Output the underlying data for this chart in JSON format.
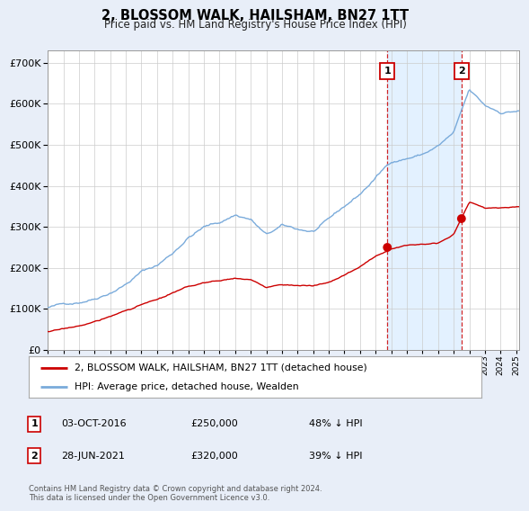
{
  "title": "2, BLOSSOM WALK, HAILSHAM, BN27 1TT",
  "subtitle": "Price paid vs. HM Land Registry's House Price Index (HPI)",
  "hpi_label": "HPI: Average price, detached house, Wealden",
  "price_label": "2, BLOSSOM WALK, HAILSHAM, BN27 1TT (detached house)",
  "hpi_color": "#7aabdb",
  "price_color": "#cc0000",
  "shade_color": "#dceeff",
  "transaction1": {
    "label": "1",
    "date": "03-OCT-2016",
    "price": 250000,
    "pct": "48% ↓ HPI",
    "x": 2016.75
  },
  "transaction2": {
    "label": "2",
    "date": "28-JUN-2021",
    "price": 320000,
    "pct": "39% ↓ HPI",
    "x": 2021.5
  },
  "ylim": [
    0,
    730000
  ],
  "yticks": [
    0,
    100000,
    200000,
    300000,
    400000,
    500000,
    600000,
    700000
  ],
  "xlim_start": 1995.0,
  "xlim_end": 2025.2,
  "footer": "Contains HM Land Registry data © Crown copyright and database right 2024.\nThis data is licensed under the Open Government Licence v3.0.",
  "background_color": "#e8eef8",
  "plot_bg_color": "#ffffff"
}
